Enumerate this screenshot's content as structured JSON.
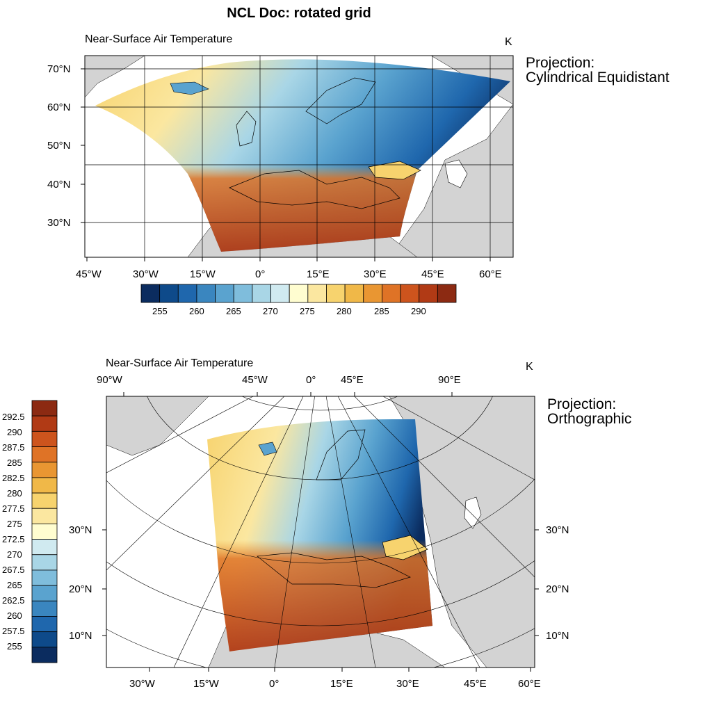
{
  "title": "NCL Doc: rotated grid",
  "panels": [
    {
      "id": "cyl",
      "left_string": "Near-Surface Air Temperature",
      "right_string": "K",
      "projection_label": "Projection:",
      "projection_name": "Cylindrical Equidistant",
      "lon_ticks": [
        "45°W",
        "30°W",
        "15°W",
        "0°",
        "15°E",
        "30°E",
        "45°E",
        "60°E"
      ],
      "lat_ticks": [
        "70°N",
        "60°N",
        "50°N",
        "40°N",
        "30°N"
      ],
      "colorbar_labels": [
        "255",
        "260",
        "265",
        "270",
        "275",
        "280",
        "285",
        "290"
      ],
      "colorbar_orientation": "horizontal"
    },
    {
      "id": "ortho",
      "left_string": "Near-Surface Air Temperature",
      "right_string": "K",
      "projection_label": "Projection:",
      "projection_name": "Orthographic",
      "top_lon_ticks": [
        "90°W",
        "45°W",
        "0°",
        "45°E",
        "90°E"
      ],
      "bottom_lon_ticks": [
        "30°W",
        "15°W",
        "0°",
        "15°E",
        "30°E",
        "45°E",
        "60°E"
      ],
      "left_lat_ticks": [
        "30°N",
        "20°N",
        "10°N"
      ],
      "right_lat_ticks": [
        "30°N",
        "20°N",
        "10°N"
      ],
      "colorbar_labels": [
        "292.5",
        "290",
        "287.5",
        "285",
        "282.5",
        "280",
        "277.5",
        "275",
        "272.5",
        "270",
        "267.5",
        "265",
        "262.5",
        "260",
        "257.5",
        "255"
      ],
      "colorbar_orientation": "vertical"
    }
  ],
  "palette": [
    "#0b2c5f",
    "#0e4a8a",
    "#1f67ad",
    "#3a86bf",
    "#5aa3cf",
    "#7fbddc",
    "#a9d6e6",
    "#d0eaf0",
    "#fffdd0",
    "#fbe7a0",
    "#f7d36e",
    "#f0b848",
    "#e99632",
    "#df7326",
    "#cd541d",
    "#b13a15",
    "#8c2a12"
  ],
  "colors": {
    "land": "#d3d3d3",
    "ocean": "#ffffff",
    "grid": "#000000"
  }
}
